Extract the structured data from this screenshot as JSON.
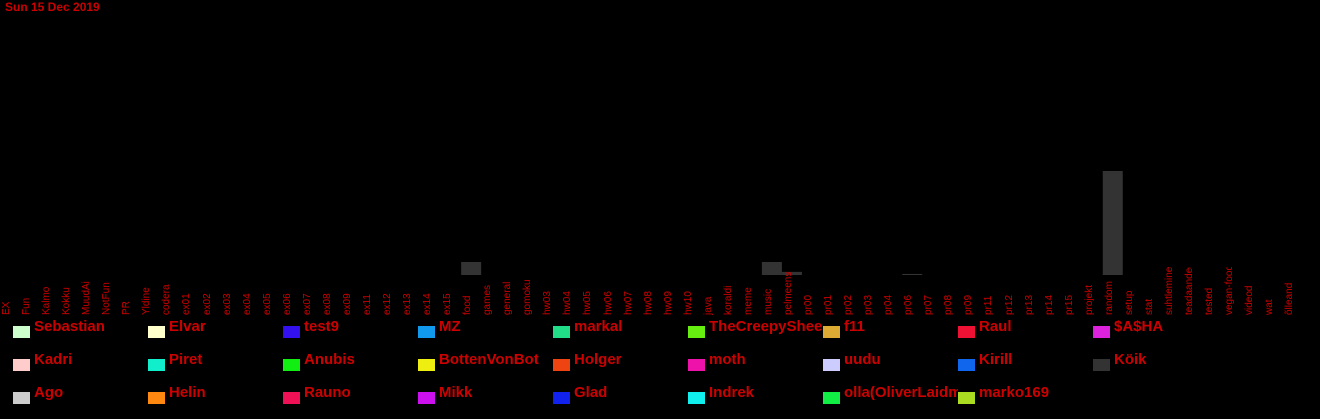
{
  "date": "Sun 15 Dec 2019",
  "chart_data": {
    "type": "bar",
    "stacked": true,
    "title": "",
    "xlabel": "",
    "ylabel": "",
    "ylim": [
      0,
      100
    ],
    "categories": [
      "EX",
      "Fun",
      "Kalmo",
      "Kokku",
      "MuudAi",
      "NotFun",
      "PR",
      "Yldine",
      "codera",
      "ex01",
      "ex02",
      "ex03",
      "ex04",
      "ex05",
      "ex06",
      "ex07",
      "ex08",
      "ex09",
      "ex11",
      "ex12",
      "ex13",
      "ex14",
      "ex15",
      "food",
      "games",
      "general",
      "gomoku",
      "hw03",
      "hw04",
      "hw05",
      "hw06",
      "hw07",
      "hw08",
      "hw09",
      "hw10",
      "java",
      "koraldi",
      "meme",
      "music",
      "pelmeens",
      "pr00",
      "pr01",
      "pr02",
      "pr03",
      "pr04",
      "pr06",
      "pr07",
      "pr08",
      "pr09",
      "pr11",
      "pr12",
      "pr13",
      "pr14",
      "pr15",
      "projekt",
      "random",
      "setup",
      "stat",
      "suhtlemine",
      "teadaanded",
      "tested",
      "vegan-food",
      "videod",
      "wat",
      "õlleand"
    ],
    "series": [
      {
        "name": "Köik",
        "color": "#333333",
        "values": [
          0,
          0,
          0,
          0,
          0,
          0,
          0,
          0,
          0,
          0,
          0,
          0,
          0,
          0,
          0,
          0,
          0,
          0,
          0,
          0,
          0,
          0,
          0,
          5,
          0,
          0,
          0,
          0,
          0,
          0,
          0,
          0,
          0,
          0,
          0,
          0,
          0,
          0,
          5,
          1.2,
          0,
          0,
          0,
          0,
          0,
          0.4,
          0,
          0,
          0,
          0,
          0,
          0,
          0,
          0,
          0,
          40,
          0,
          0,
          0,
          0,
          0,
          0,
          0,
          0,
          0
        ]
      }
    ],
    "legend": {
      "placement": "bottom",
      "entries": [
        {
          "name": "Sebastian",
          "color": "#ccffcc"
        },
        {
          "name": "Elvar",
          "color": "#ffffcc"
        },
        {
          "name": "test9",
          "color": "#3311ee"
        },
        {
          "name": "MZ",
          "color": "#1199ee"
        },
        {
          "name": "markal",
          "color": "#22dd88"
        },
        {
          "name": "TheCreepySheep",
          "color": "#66ee11"
        },
        {
          "name": "f11",
          "color": "#ddaa33"
        },
        {
          "name": "Raul",
          "color": "#ee1133"
        },
        {
          "name": "$A$HA",
          "color": "#dd22dd"
        },
        {
          "name": "Kadri",
          "color": "#ffcccc"
        },
        {
          "name": "Piret",
          "color": "#11eecc"
        },
        {
          "name": "Anubis",
          "color": "#11ee11"
        },
        {
          "name": "BottenVonBot",
          "color": "#eeee11"
        },
        {
          "name": "Holger",
          "color": "#ee4411"
        },
        {
          "name": "moth",
          "color": "#ee11aa"
        },
        {
          "name": "uudu",
          "color": "#ccccff"
        },
        {
          "name": "Kirill",
          "color": "#1166ee"
        },
        {
          "name": "Köik",
          "color": "#333333"
        },
        {
          "name": "Ago",
          "color": "#cccccc"
        },
        {
          "name": "Helin",
          "color": "#ff8811"
        },
        {
          "name": "Rauno",
          "color": "#ee1155"
        },
        {
          "name": "Mikk",
          "color": "#cc11ee"
        },
        {
          "name": "Glad",
          "color": "#1122ee"
        },
        {
          "name": "Indrek",
          "color": "#11eeee"
        },
        {
          "name": "olla(OliverLaidma)",
          "color": "#11ee44"
        },
        {
          "name": "marko169",
          "color": "#aadd22"
        }
      ]
    }
  }
}
